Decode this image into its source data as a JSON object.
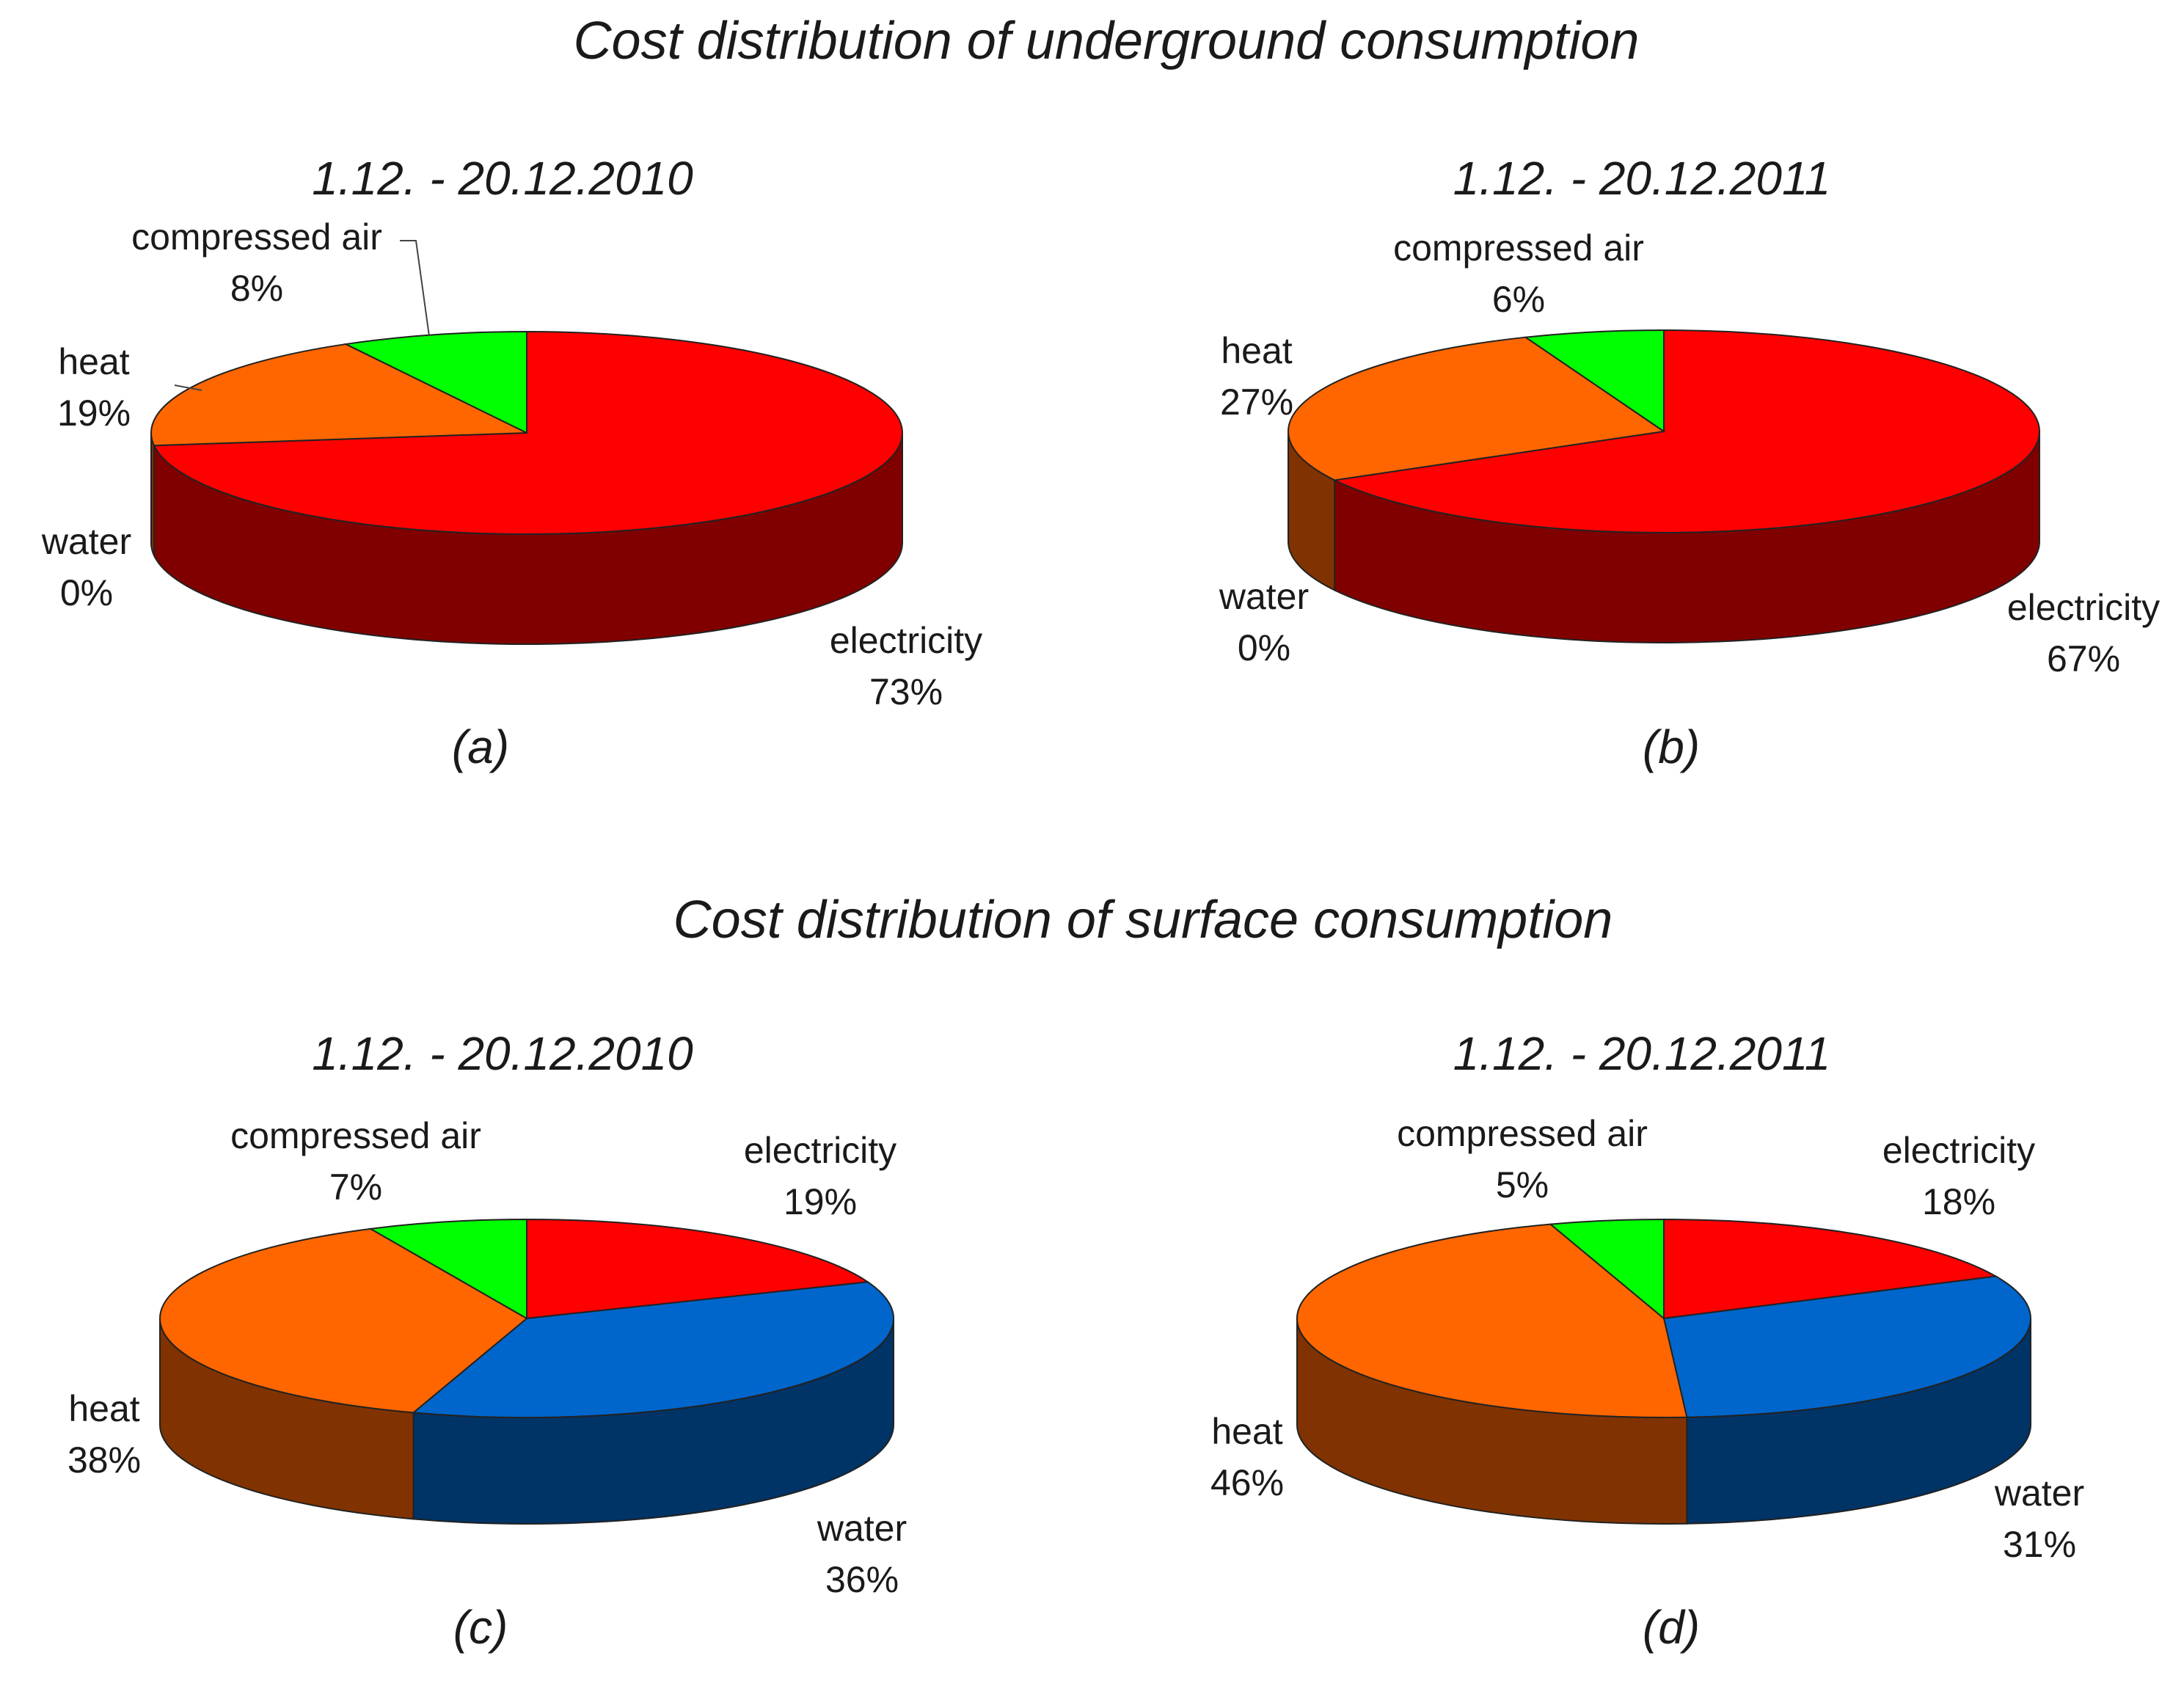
{
  "figure": {
    "section_titles": [
      "Cost distribution of underground consumption",
      "Cost distribution of surface consumption"
    ]
  },
  "colors": {
    "electricity": "#ff0000",
    "heat": "#ff6600",
    "compressed_air": "#00ff00",
    "water": "#0066cc"
  },
  "chart_data": [
    {
      "type": "pie",
      "panel": "(a)",
      "title": "1.12. - 20.12.2010",
      "section": "Cost distribution of underground consumption",
      "slices": [
        {
          "key": "electricity",
          "name": "electricity",
          "pct": "73%",
          "value": 73
        },
        {
          "key": "water",
          "name": "water",
          "pct": "0%",
          "value": 0
        },
        {
          "key": "heat",
          "name": "heat",
          "pct": "19%",
          "value": 19
        },
        {
          "key": "compressed_air",
          "name": "compressed air",
          "pct": "8%",
          "value": 8
        }
      ]
    },
    {
      "type": "pie",
      "panel": "(b)",
      "title": "1.12. - 20.12.2011",
      "section": "Cost distribution of underground consumption",
      "slices": [
        {
          "key": "electricity",
          "name": "electricity",
          "pct": "67%",
          "value": 67
        },
        {
          "key": "water",
          "name": "water",
          "pct": "0%",
          "value": 0
        },
        {
          "key": "heat",
          "name": "heat",
          "pct": "27%",
          "value": 27
        },
        {
          "key": "compressed_air",
          "name": "compressed air",
          "pct": "6%",
          "value": 6
        }
      ]
    },
    {
      "type": "pie",
      "panel": "(c)",
      "title": "1.12. - 20.12.2010",
      "section": "Cost distribution of surface consumption",
      "slices": [
        {
          "key": "electricity",
          "name": "electricity",
          "pct": "19%",
          "value": 19
        },
        {
          "key": "water",
          "name": "water",
          "pct": "36%",
          "value": 36
        },
        {
          "key": "heat",
          "name": "heat",
          "pct": "38%",
          "value": 38
        },
        {
          "key": "compressed_air",
          "name": "compressed air",
          "pct": "7%",
          "value": 7
        }
      ]
    },
    {
      "type": "pie",
      "panel": "(d)",
      "title": "1.12. - 20.12.2011",
      "section": "Cost distribution of surface consumption",
      "slices": [
        {
          "key": "electricity",
          "name": "electricity",
          "pct": "18%",
          "value": 18
        },
        {
          "key": "water",
          "name": "water",
          "pct": "31%",
          "value": 31
        },
        {
          "key": "heat",
          "name": "heat",
          "pct": "46%",
          "value": 46
        },
        {
          "key": "compressed_air",
          "name": "compressed air",
          "pct": "5%",
          "value": 5
        }
      ]
    }
  ]
}
